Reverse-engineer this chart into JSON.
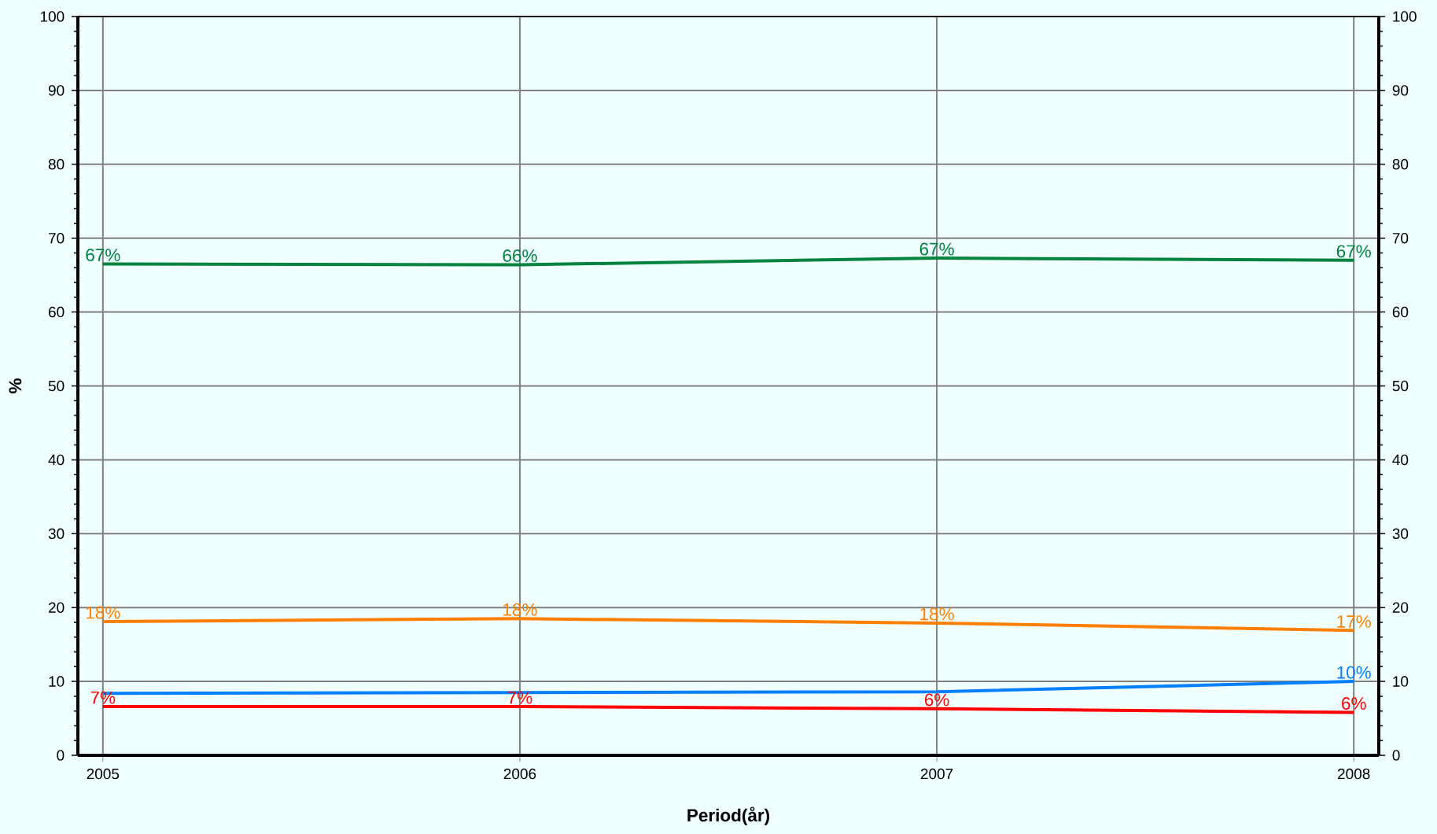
{
  "chart_data": {
    "type": "line",
    "xlabel": "Period(år)",
    "ylabel": "%",
    "x": [
      2005,
      2006,
      2007,
      2008
    ],
    "xlim": [
      2004.94,
      2008.06
    ],
    "xticks": [
      2005,
      2006,
      2007,
      2008
    ],
    "ylim": [
      0,
      100
    ],
    "yticks": [
      0,
      10,
      20,
      30,
      40,
      50,
      60,
      70,
      80,
      90,
      100
    ],
    "y2lim": [
      0,
      100
    ],
    "y2ticks": [
      0,
      10,
      20,
      30,
      40,
      50,
      60,
      70,
      80,
      90,
      100
    ],
    "grid": true,
    "marker": "none",
    "line_style": "solid",
    "series": [
      {
        "color": "#00843d",
        "values": [
          66.5,
          66.4,
          67.3,
          67.0
        ],
        "value_labels": [
          "67%",
          "66%",
          "67%",
          "67%"
        ]
      },
      {
        "color": "#ff8000",
        "values": [
          18.1,
          18.5,
          17.9,
          16.9
        ],
        "value_labels": [
          "18%",
          "18%",
          "18%",
          "17%"
        ]
      },
      {
        "color": "#0080ff",
        "values": [
          8.4,
          8.5,
          8.6,
          10.0
        ],
        "value_labels": [
          null,
          null,
          null,
          "10%"
        ]
      },
      {
        "color": "#ff0000",
        "values": [
          6.6,
          6.6,
          6.3,
          5.8
        ],
        "value_labels": [
          "7%",
          "7%",
          "6%",
          "6%"
        ]
      }
    ]
  }
}
